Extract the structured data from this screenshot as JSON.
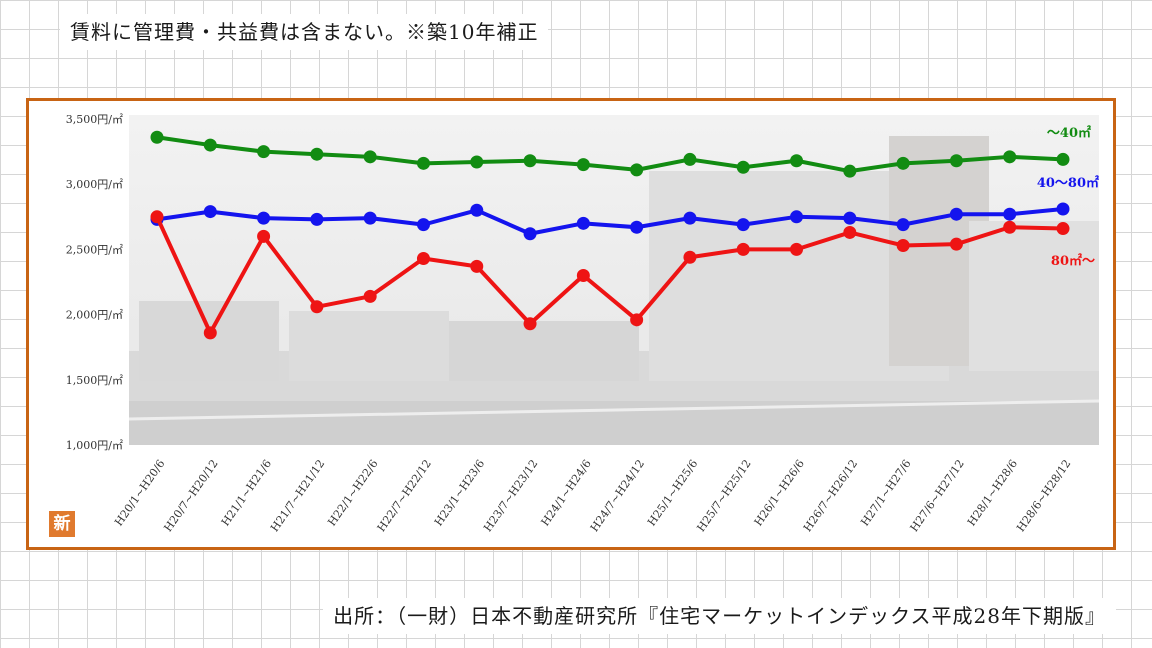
{
  "header": {
    "note": "賃料に管理費・共益費は含まない。※築10年補正"
  },
  "footer": {
    "source": "出所：（一財）日本不動産研究所『住宅マーケットインデックス平成28年下期版』"
  },
  "badge": {
    "label": "新"
  },
  "chart_data": {
    "type": "line",
    "title": "",
    "xlabel": "",
    "ylabel": "",
    "ylim": [
      1000,
      3500
    ],
    "yticks": [
      1000,
      1500,
      2000,
      2500,
      3000,
      3500
    ],
    "ytick_labels": [
      "1,000円/㎡",
      "1,500円/㎡",
      "2,000円/㎡",
      "2,500円/㎡",
      "3,000円/㎡",
      "3,500円/㎡"
    ],
    "grid": false,
    "categories": [
      "H20/1~H20/6",
      "H20/7~H20/12",
      "H21/1~H21/6",
      "H21/7~H21/12",
      "H22/1~H22/6",
      "H22/7~H22/12",
      "H23/1~H23/6",
      "H23/7~H23/12",
      "H24/1~H24/6",
      "H24/7~H24/12",
      "H25/1~H25/6",
      "H25/7~H25/12",
      "H26/1~H26/6",
      "H26/7~H26/12",
      "H27/1~H27/6",
      "H27/6~H27/12",
      "H28/1~H28/6",
      "H28/6~H28/12"
    ],
    "series": [
      {
        "name": "～40㎡",
        "color": "#128c12",
        "values": [
          3360,
          3300,
          3250,
          3230,
          3210,
          3160,
          3170,
          3180,
          3150,
          3110,
          3190,
          3130,
          3180,
          3100,
          3160,
          3180,
          3210,
          3190
        ]
      },
      {
        "name": "40～80㎡",
        "color": "#1414ee",
        "values": [
          2730,
          2790,
          2740,
          2730,
          2740,
          2690,
          2800,
          2620,
          2700,
          2670,
          2740,
          2690,
          2750,
          2740,
          2690,
          2770,
          2770,
          2810
        ]
      },
      {
        "name": "80㎡～",
        "color": "#ee1414",
        "values": [
          2750,
          1860,
          2600,
          2060,
          2140,
          2430,
          2370,
          1930,
          2300,
          1960,
          2440,
          2500,
          2500,
          2630,
          2530,
          2540,
          2670,
          2660
        ]
      }
    ]
  }
}
